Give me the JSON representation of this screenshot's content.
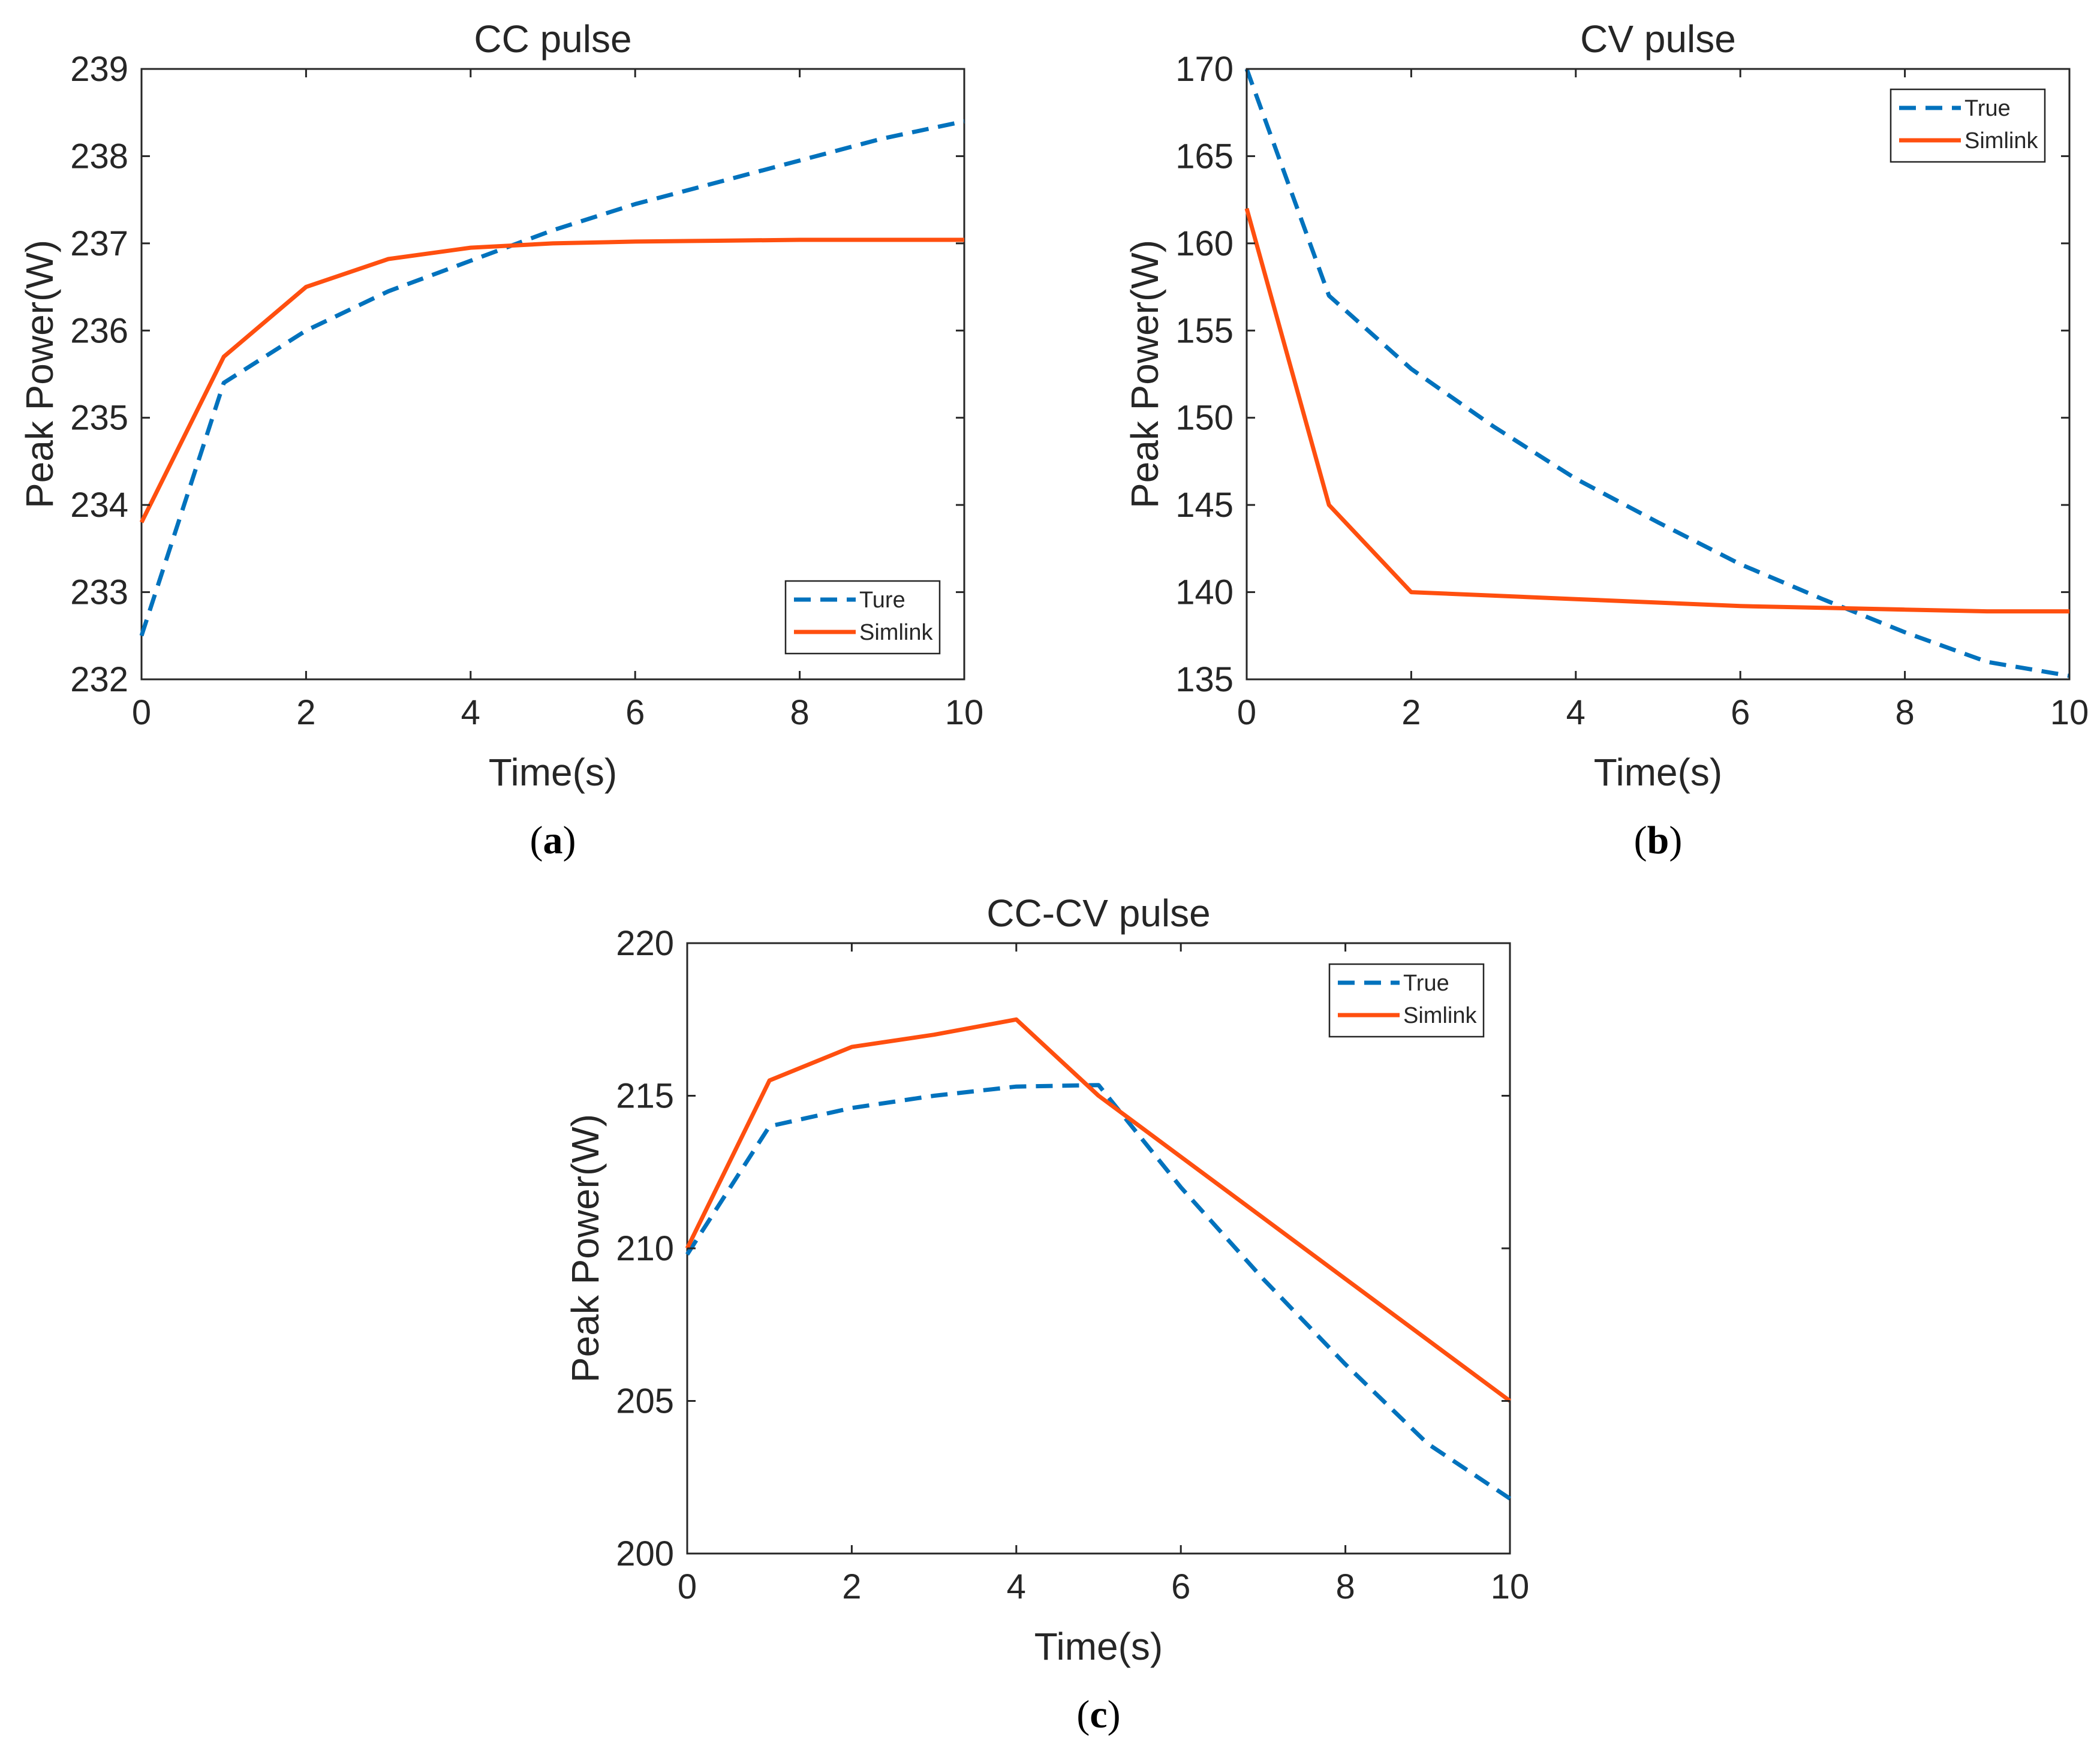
{
  "chart_data": [
    {
      "type": "line",
      "panel_id": "a",
      "title": "CC pulse",
      "xlabel": "Time(s)",
      "ylabel": "Peak Power(W)",
      "xlim": [
        0,
        10
      ],
      "ylim": [
        232,
        239
      ],
      "xticks": [
        0,
        2,
        4,
        6,
        8,
        10
      ],
      "yticks": [
        232,
        233,
        234,
        235,
        236,
        237,
        238,
        239
      ],
      "grid": false,
      "legend_position": "bottom-right",
      "caption": "a",
      "series": [
        {
          "name": "Ture",
          "style": "dashed",
          "color": "#0072BD",
          "x": [
            0,
            1,
            2,
            3,
            4,
            5,
            6,
            7,
            8,
            9,
            10
          ],
          "y": [
            232.5,
            235.4,
            236.0,
            236.45,
            236.8,
            237.15,
            237.45,
            237.7,
            237.95,
            238.2,
            238.4
          ]
        },
        {
          "name": "Simlink",
          "style": "solid",
          "color": "#FF4F0F",
          "x": [
            0,
            1,
            2,
            3,
            4,
            5,
            6,
            7,
            8,
            9,
            10
          ],
          "y": [
            233.8,
            235.7,
            236.5,
            236.82,
            236.95,
            237.0,
            237.02,
            237.03,
            237.04,
            237.04,
            237.04
          ]
        }
      ]
    },
    {
      "type": "line",
      "panel_id": "b",
      "title": "CV pulse",
      "xlabel": "Time(s)",
      "ylabel": "Peak Power(W)",
      "xlim": [
        0,
        10
      ],
      "ylim": [
        135,
        170
      ],
      "xticks": [
        0,
        2,
        4,
        6,
        8,
        10
      ],
      "yticks": [
        135,
        140,
        145,
        150,
        155,
        160,
        165,
        170
      ],
      "grid": false,
      "legend_position": "top-right",
      "caption": "b",
      "series": [
        {
          "name": "True",
          "style": "dashed",
          "color": "#0072BD",
          "x": [
            0,
            1,
            2,
            3,
            4,
            5,
            6,
            7,
            8,
            9,
            10
          ],
          "y": [
            170,
            157,
            152.8,
            149.5,
            146.5,
            144.0,
            141.6,
            139.6,
            137.7,
            136.0,
            135.2
          ]
        },
        {
          "name": "Simlink",
          "style": "solid",
          "color": "#FF4F0F",
          "x": [
            0,
            1,
            2,
            3,
            4,
            5,
            6,
            7,
            8,
            9,
            10
          ],
          "y": [
            162,
            145,
            140,
            139.8,
            139.6,
            139.4,
            139.2,
            139.1,
            139.0,
            138.9,
            138.9
          ]
        }
      ]
    },
    {
      "type": "line",
      "panel_id": "c",
      "title": "CC-CV pulse",
      "xlabel": "Time(s)",
      "ylabel": "Peak Power(W)",
      "xlim": [
        0,
        10
      ],
      "ylim": [
        200,
        220
      ],
      "xticks": [
        0,
        2,
        4,
        6,
        8,
        10
      ],
      "yticks": [
        200,
        205,
        210,
        215,
        220
      ],
      "grid": false,
      "legend_position": "top-right",
      "caption": "c",
      "series": [
        {
          "name": "True",
          "style": "dashed",
          "color": "#0072BD",
          "x": [
            0,
            1,
            2,
            3,
            4,
            5,
            6,
            7,
            8,
            9,
            10
          ],
          "y": [
            209.8,
            214.0,
            214.6,
            215.0,
            215.3,
            215.35,
            212.0,
            209.0,
            206.2,
            203.6,
            201.8
          ]
        },
        {
          "name": "Simlink",
          "style": "solid",
          "color": "#FF4F0F",
          "x": [
            0,
            1,
            2,
            3,
            4,
            5,
            6,
            7,
            8,
            9,
            10
          ],
          "y": [
            210.0,
            215.5,
            216.6,
            217.0,
            217.5,
            215.0,
            213.0,
            211.0,
            209.0,
            207.0,
            205.0
          ]
        }
      ]
    }
  ]
}
